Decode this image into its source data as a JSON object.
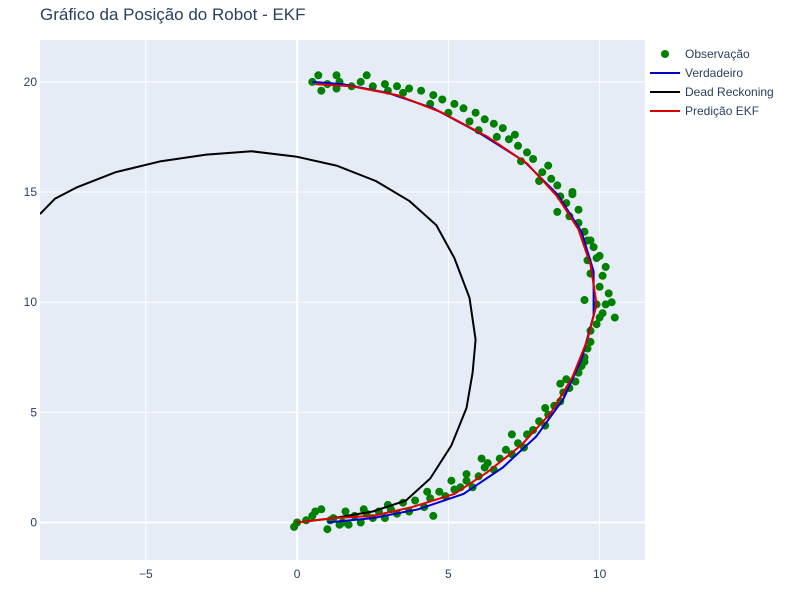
{
  "chart_data": {
    "type": "scatter",
    "title": "Gráfico da Posição do Robot - EKF",
    "xlabel": "",
    "ylabel": "",
    "xlim": [
      -8.5,
      11.5
    ],
    "ylim": [
      -1.7,
      21.9
    ],
    "x_ticks": [
      -5,
      0,
      5,
      10
    ],
    "x_tick_labels": [
      "−5",
      "0",
      "5",
      "10"
    ],
    "y_ticks": [
      0,
      5,
      10,
      15,
      20
    ],
    "y_tick_labels": [
      "0",
      "5",
      "10",
      "15",
      "20"
    ],
    "grid": true,
    "legend_position": "top-right",
    "series": [
      {
        "name": "Observação",
        "mode": "markers",
        "color": "#008000",
        "points": [
          [
            -0.1,
            -0.2
          ],
          [
            0.0,
            0.0
          ],
          [
            0.3,
            0.1
          ],
          [
            0.6,
            0.5
          ],
          [
            0.8,
            0.6
          ],
          [
            1.0,
            -0.3
          ],
          [
            1.2,
            0.2
          ],
          [
            1.4,
            -0.1
          ],
          [
            1.6,
            0.5
          ],
          [
            1.7,
            -0.1
          ],
          [
            1.9,
            0.3
          ],
          [
            2.1,
            0.0
          ],
          [
            2.3,
            0.4
          ],
          [
            2.5,
            0.2
          ],
          [
            2.7,
            0.5
          ],
          [
            2.9,
            0.2
          ],
          [
            3.0,
            0.8
          ],
          [
            3.3,
            0.4
          ],
          [
            3.5,
            0.9
          ],
          [
            3.7,
            0.5
          ],
          [
            3.9,
            1.0
          ],
          [
            4.2,
            0.7
          ],
          [
            4.4,
            1.1
          ],
          [
            4.5,
            0.3
          ],
          [
            4.7,
            1.4
          ],
          [
            4.9,
            1.2
          ],
          [
            5.2,
            1.5
          ],
          [
            5.4,
            1.6
          ],
          [
            5.6,
            1.9
          ],
          [
            5.8,
            1.6
          ],
          [
            6.0,
            2.1
          ],
          [
            6.2,
            2.5
          ],
          [
            6.3,
            2.7
          ],
          [
            5.6,
            2.2
          ],
          [
            6.5,
            2.4
          ],
          [
            6.7,
            2.9
          ],
          [
            6.9,
            3.3
          ],
          [
            7.1,
            3.1
          ],
          [
            7.3,
            3.6
          ],
          [
            7.5,
            3.4
          ],
          [
            7.6,
            4.0
          ],
          [
            7.8,
            4.2
          ],
          [
            8.0,
            4.6
          ],
          [
            8.2,
            4.4
          ],
          [
            8.3,
            4.9
          ],
          [
            8.5,
            5.3
          ],
          [
            8.7,
            5.5
          ],
          [
            8.8,
            5.9
          ],
          [
            9.0,
            6.1
          ],
          [
            8.9,
            6.5
          ],
          [
            9.2,
            6.4
          ],
          [
            9.3,
            6.8
          ],
          [
            9.4,
            7.1
          ],
          [
            9.5,
            7.5
          ],
          [
            9.6,
            7.9
          ],
          [
            9.7,
            8.2
          ],
          [
            9.7,
            8.7
          ],
          [
            9.9,
            9.0
          ],
          [
            10.0,
            9.3
          ],
          [
            10.1,
            9.5
          ],
          [
            10.2,
            9.9
          ],
          [
            10.3,
            10.4
          ],
          [
            9.5,
            10.1
          ],
          [
            10.0,
            10.7
          ],
          [
            10.1,
            11.2
          ],
          [
            10.2,
            11.6
          ],
          [
            9.7,
            11.3
          ],
          [
            9.9,
            12.0
          ],
          [
            9.6,
            11.9
          ],
          [
            9.8,
            12.5
          ],
          [
            9.7,
            12.8
          ],
          [
            9.5,
            13.2
          ],
          [
            9.3,
            13.6
          ],
          [
            9.0,
            13.9
          ],
          [
            9.3,
            14.2
          ],
          [
            8.9,
            14.5
          ],
          [
            8.7,
            14.8
          ],
          [
            9.1,
            15.0
          ],
          [
            8.6,
            15.3
          ],
          [
            8.4,
            15.6
          ],
          [
            8.1,
            15.9
          ],
          [
            8.3,
            16.2
          ],
          [
            7.8,
            16.5
          ],
          [
            7.6,
            16.8
          ],
          [
            7.3,
            17.1
          ],
          [
            7.0,
            17.4
          ],
          [
            7.2,
            17.6
          ],
          [
            6.8,
            17.9
          ],
          [
            6.5,
            18.1
          ],
          [
            6.2,
            18.3
          ],
          [
            5.9,
            18.6
          ],
          [
            5.5,
            18.8
          ],
          [
            5.2,
            19.0
          ],
          [
            4.8,
            19.2
          ],
          [
            4.5,
            19.4
          ],
          [
            4.1,
            19.6
          ],
          [
            3.7,
            19.7
          ],
          [
            3.3,
            19.8
          ],
          [
            2.9,
            19.9
          ],
          [
            2.5,
            19.8
          ],
          [
            2.1,
            20.0
          ],
          [
            1.8,
            19.8
          ],
          [
            1.4,
            20.0
          ],
          [
            1.0,
            19.9
          ],
          [
            0.7,
            20.3
          ],
          [
            0.5,
            20.0
          ],
          [
            0.8,
            19.6
          ],
          [
            1.3,
            19.7
          ],
          [
            2.3,
            20.3
          ],
          [
            3.5,
            19.5
          ],
          [
            4.4,
            19.0
          ],
          [
            5.0,
            18.6
          ],
          [
            5.7,
            18.2
          ],
          [
            6.6,
            17.5
          ],
          [
            7.4,
            16.4
          ],
          [
            8.0,
            15.5
          ],
          [
            8.6,
            14.1
          ],
          [
            9.6,
            12.8
          ],
          [
            10.0,
            12.1
          ],
          [
            10.5,
            9.3
          ],
          [
            9.9,
            9.9
          ],
          [
            9.5,
            7.3
          ],
          [
            8.7,
            6.3
          ],
          [
            8.2,
            5.2
          ],
          [
            7.1,
            4.0
          ],
          [
            6.1,
            2.9
          ],
          [
            5.1,
            1.9
          ],
          [
            4.3,
            1.4
          ],
          [
            3.1,
            0.6
          ],
          [
            2.2,
            0.6
          ],
          [
            1.5,
            0.0
          ],
          [
            0.5,
            0.3
          ],
          [
            1.1,
            0.1
          ],
          [
            10.4,
            10.0
          ],
          [
            9.1,
            14.9
          ],
          [
            6.0,
            17.8
          ],
          [
            3.0,
            19.6
          ],
          [
            1.3,
            20.3
          ]
        ]
      },
      {
        "name": "Verdadeiro",
        "mode": "line",
        "color": "#0000cc",
        "points": [
          [
            1.0,
            0.0
          ],
          [
            2.5,
            0.2
          ],
          [
            4.0,
            0.6
          ],
          [
            5.5,
            1.3
          ],
          [
            6.8,
            2.5
          ],
          [
            7.9,
            3.9
          ],
          [
            8.8,
            5.6
          ],
          [
            9.4,
            7.4
          ],
          [
            9.8,
            9.4
          ],
          [
            9.8,
            11.4
          ],
          [
            9.4,
            13.2
          ],
          [
            8.6,
            14.9
          ],
          [
            7.5,
            16.4
          ],
          [
            6.0,
            17.7
          ],
          [
            4.5,
            18.8
          ],
          [
            3.0,
            19.5
          ],
          [
            1.5,
            19.9
          ],
          [
            0.5,
            20.0
          ]
        ]
      },
      {
        "name": "Dead Reckoning",
        "mode": "line",
        "color": "#000000",
        "points": [
          [
            0.0,
            0.0
          ],
          [
            1.2,
            0.2
          ],
          [
            2.5,
            0.5
          ],
          [
            3.6,
            1.0
          ],
          [
            4.4,
            2.0
          ],
          [
            5.1,
            3.5
          ],
          [
            5.6,
            5.2
          ],
          [
            5.8,
            6.8
          ],
          [
            5.9,
            8.3
          ],
          [
            5.7,
            10.2
          ],
          [
            5.2,
            12.0
          ],
          [
            4.6,
            13.5
          ],
          [
            3.7,
            14.6
          ],
          [
            2.6,
            15.5
          ],
          [
            1.3,
            16.2
          ],
          [
            0.0,
            16.6
          ],
          [
            -1.5,
            16.85
          ],
          [
            -3.0,
            16.7
          ],
          [
            -4.5,
            16.4
          ],
          [
            -6.0,
            15.9
          ],
          [
            -7.3,
            15.2
          ],
          [
            -8.0,
            14.7
          ],
          [
            -8.5,
            14.0
          ]
        ]
      },
      {
        "name": "Predição EKF",
        "mode": "line",
        "color": "#dd0000",
        "points": [
          [
            0.0,
            0.0
          ],
          [
            1.2,
            0.2
          ],
          [
            2.5,
            0.3
          ],
          [
            3.8,
            0.7
          ],
          [
            5.2,
            1.3
          ],
          [
            6.3,
            2.3
          ],
          [
            7.4,
            3.5
          ],
          [
            8.4,
            5.0
          ],
          [
            9.1,
            6.6
          ],
          [
            9.6,
            8.3
          ],
          [
            9.9,
            9.9
          ],
          [
            9.7,
            11.7
          ],
          [
            9.3,
            13.3
          ],
          [
            8.6,
            14.8
          ],
          [
            7.6,
            16.3
          ],
          [
            6.3,
            17.5
          ],
          [
            4.8,
            18.6
          ],
          [
            3.3,
            19.4
          ],
          [
            1.8,
            19.8
          ],
          [
            0.6,
            19.9
          ]
        ]
      }
    ]
  }
}
